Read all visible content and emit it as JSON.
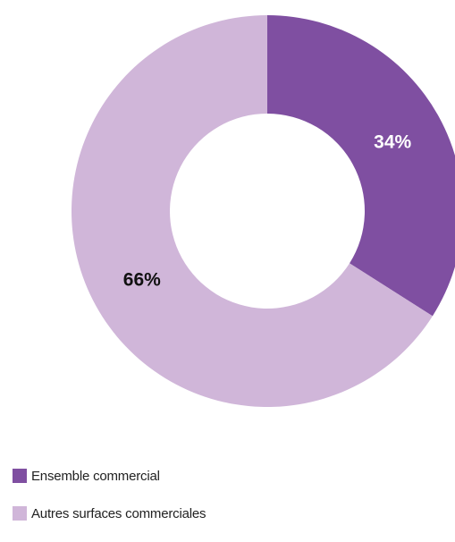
{
  "chart_data": {
    "type": "pie",
    "variant": "donut",
    "title": "",
    "slices": [
      {
        "label": "Ensemble commercial",
        "value": 34,
        "display": "34%",
        "color": "#7f4fa1",
        "label_color": "#ffffff"
      },
      {
        "label": "Autres surfaces commerciales",
        "value": 66,
        "display": "66%",
        "color": "#d0b6d9",
        "label_color": "#111111"
      }
    ],
    "legend_position": "bottom-left"
  },
  "legend": {
    "items": [
      {
        "label": "Ensemble commercial",
        "color": "#7f4fa1"
      },
      {
        "label": "Autres surfaces commerciales",
        "color": "#d0b6d9"
      }
    ]
  }
}
